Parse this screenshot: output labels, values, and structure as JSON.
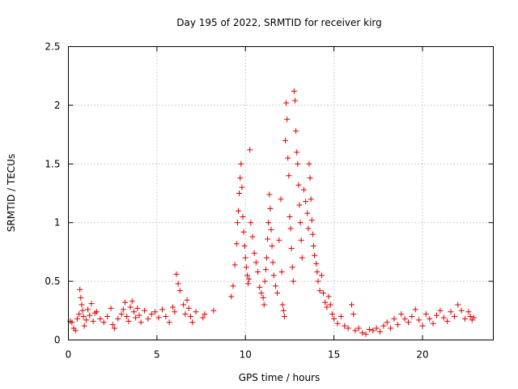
{
  "chart_data": {
    "type": "scatter",
    "title": "Day 195 of 2022, SRMTID for receiver kirg",
    "xlabel": "GPS time / hours",
    "ylabel": "SRMTID / TECUs",
    "xlim": [
      0,
      24
    ],
    "ylim": [
      0,
      2.5
    ],
    "xticks": [
      0,
      5,
      10,
      15,
      20
    ],
    "xtick_labels": [
      "0",
      "5",
      "10",
      "15",
      "20"
    ],
    "yticks": [
      0,
      0.5,
      1,
      1.5,
      2,
      2.5
    ],
    "ytick_labels": [
      "0",
      "0.5",
      "1",
      "1.5",
      "2",
      "2.5"
    ],
    "grid": true,
    "marker": "+",
    "color": "#e00000",
    "series": [
      {
        "name": "SRMTID",
        "points": [
          [
            0.1,
            0.16
          ],
          [
            0.2,
            0.15
          ],
          [
            0.3,
            0.1
          ],
          [
            0.4,
            0.08
          ],
          [
            0.5,
            0.18
          ],
          [
            0.6,
            0.22
          ],
          [
            0.65,
            0.43
          ],
          [
            0.7,
            0.36
          ],
          [
            0.75,
            0.3
          ],
          [
            0.8,
            0.25
          ],
          [
            0.85,
            0.2
          ],
          [
            0.9,
            0.12
          ],
          [
            1.0,
            0.17
          ],
          [
            1.1,
            0.26
          ],
          [
            1.2,
            0.21
          ],
          [
            1.3,
            0.31
          ],
          [
            1.4,
            0.16
          ],
          [
            1.5,
            0.23
          ],
          [
            1.6,
            0.24
          ],
          [
            1.8,
            0.18
          ],
          [
            2.0,
            0.15
          ],
          [
            2.2,
            0.2
          ],
          [
            2.4,
            0.27
          ],
          [
            2.5,
            0.13
          ],
          [
            2.6,
            0.1
          ],
          [
            2.8,
            0.18
          ],
          [
            3.0,
            0.22
          ],
          [
            3.1,
            0.26
          ],
          [
            3.2,
            0.32
          ],
          [
            3.3,
            0.2
          ],
          [
            3.4,
            0.16
          ],
          [
            3.5,
            0.28
          ],
          [
            3.6,
            0.33
          ],
          [
            3.7,
            0.24
          ],
          [
            3.8,
            0.19
          ],
          [
            3.9,
            0.27
          ],
          [
            4.0,
            0.21
          ],
          [
            4.1,
            0.15
          ],
          [
            4.3,
            0.25
          ],
          [
            4.5,
            0.18
          ],
          [
            4.7,
            0.22
          ],
          [
            4.9,
            0.24
          ],
          [
            5.1,
            0.19
          ],
          [
            5.3,
            0.26
          ],
          [
            5.5,
            0.2
          ],
          [
            5.7,
            0.15
          ],
          [
            5.9,
            0.28
          ],
          [
            6.0,
            0.24
          ],
          [
            6.1,
            0.56
          ],
          [
            6.2,
            0.48
          ],
          [
            6.3,
            0.42
          ],
          [
            6.5,
            0.3
          ],
          [
            6.6,
            0.22
          ],
          [
            6.7,
            0.34
          ],
          [
            6.8,
            0.27
          ],
          [
            6.9,
            0.2
          ],
          [
            7.0,
            0.15
          ],
          [
            7.2,
            0.24
          ],
          [
            7.6,
            0.19
          ],
          [
            7.7,
            0.22
          ],
          [
            8.2,
            0.25
          ],
          [
            9.2,
            0.37
          ],
          [
            9.3,
            0.46
          ],
          [
            9.4,
            0.64
          ],
          [
            9.5,
            0.82
          ],
          [
            9.55,
            1.0
          ],
          [
            9.6,
            1.1
          ],
          [
            9.65,
            1.25
          ],
          [
            9.7,
            1.38
          ],
          [
            9.75,
            1.5
          ],
          [
            9.8,
            1.3
          ],
          [
            9.85,
            1.05
          ],
          [
            9.9,
            0.92
          ],
          [
            9.95,
            0.8
          ],
          [
            10.0,
            0.7
          ],
          [
            10.05,
            0.62
          ],
          [
            10.1,
            0.55
          ],
          [
            10.15,
            0.48
          ],
          [
            10.2,
            0.52
          ],
          [
            10.25,
            1.62
          ],
          [
            10.3,
            1.0
          ],
          [
            10.4,
            0.88
          ],
          [
            10.5,
            0.74
          ],
          [
            10.6,
            0.66
          ],
          [
            10.7,
            0.58
          ],
          [
            10.8,
            0.45
          ],
          [
            10.9,
            0.4
          ],
          [
            11.0,
            0.36
          ],
          [
            11.05,
            0.3
          ],
          [
            11.1,
            0.5
          ],
          [
            11.15,
            0.6
          ],
          [
            11.2,
            0.7
          ],
          [
            11.25,
            0.86
          ],
          [
            11.3,
            1.0
          ],
          [
            11.35,
            1.24
          ],
          [
            11.4,
            1.12
          ],
          [
            11.45,
            0.94
          ],
          [
            11.5,
            0.8
          ],
          [
            11.55,
            0.66
          ],
          [
            11.6,
            0.55
          ],
          [
            11.7,
            0.46
          ],
          [
            11.8,
            0.4
          ],
          [
            11.9,
            0.85
          ],
          [
            12.0,
            1.2
          ],
          [
            12.05,
            0.58
          ],
          [
            12.1,
            0.3
          ],
          [
            12.15,
            0.25
          ],
          [
            12.2,
            0.2
          ],
          [
            12.25,
            1.7
          ],
          [
            12.3,
            2.02
          ],
          [
            12.35,
            1.88
          ],
          [
            12.4,
            1.55
          ],
          [
            12.45,
            1.4
          ],
          [
            12.5,
            1.05
          ],
          [
            12.55,
            0.95
          ],
          [
            12.6,
            0.78
          ],
          [
            12.65,
            0.62
          ],
          [
            12.7,
            0.5
          ],
          [
            12.75,
            2.12
          ],
          [
            12.8,
            2.04
          ],
          [
            12.85,
            1.78
          ],
          [
            12.9,
            1.6
          ],
          [
            12.95,
            1.5
          ],
          [
            13.0,
            1.32
          ],
          [
            13.05,
            1.15
          ],
          [
            13.1,
            1.0
          ],
          [
            13.15,
            0.85
          ],
          [
            13.2,
            0.7
          ],
          [
            13.3,
            1.28
          ],
          [
            13.4,
            1.18
          ],
          [
            13.5,
            1.08
          ],
          [
            13.55,
            0.95
          ],
          [
            13.6,
            1.5
          ],
          [
            13.65,
            1.38
          ],
          [
            13.7,
            1.2
          ],
          [
            13.75,
            1.02
          ],
          [
            13.8,
            0.9
          ],
          [
            13.85,
            0.8
          ],
          [
            13.9,
            0.72
          ],
          [
            14.0,
            0.65
          ],
          [
            14.05,
            0.58
          ],
          [
            14.1,
            0.5
          ],
          [
            14.2,
            0.42
          ],
          [
            14.3,
            0.55
          ],
          [
            14.4,
            0.4
          ],
          [
            14.5,
            0.32
          ],
          [
            14.6,
            0.28
          ],
          [
            14.7,
            0.37
          ],
          [
            14.8,
            0.3
          ],
          [
            14.9,
            0.22
          ],
          [
            15.0,
            0.18
          ],
          [
            15.2,
            0.14
          ],
          [
            15.4,
            0.2
          ],
          [
            15.6,
            0.12
          ],
          [
            15.8,
            0.1
          ],
          [
            16.0,
            0.3
          ],
          [
            16.1,
            0.22
          ],
          [
            16.2,
            0.08
          ],
          [
            16.4,
            0.1
          ],
          [
            16.6,
            0.06
          ],
          [
            16.8,
            0.05
          ],
          [
            17.0,
            0.09
          ],
          [
            17.2,
            0.08
          ],
          [
            17.4,
            0.1
          ],
          [
            17.6,
            0.07
          ],
          [
            17.8,
            0.12
          ],
          [
            18.0,
            0.15
          ],
          [
            18.2,
            0.1
          ],
          [
            18.4,
            0.18
          ],
          [
            18.6,
            0.13
          ],
          [
            18.8,
            0.22
          ],
          [
            19.0,
            0.18
          ],
          [
            19.2,
            0.15
          ],
          [
            19.4,
            0.2
          ],
          [
            19.6,
            0.26
          ],
          [
            19.8,
            0.17
          ],
          [
            20.0,
            0.12
          ],
          [
            20.2,
            0.22
          ],
          [
            20.4,
            0.18
          ],
          [
            20.6,
            0.14
          ],
          [
            20.8,
            0.21
          ],
          [
            21.0,
            0.25
          ],
          [
            21.2,
            0.19
          ],
          [
            21.4,
            0.16
          ],
          [
            21.6,
            0.24
          ],
          [
            21.8,
            0.2
          ],
          [
            22.0,
            0.3
          ],
          [
            22.2,
            0.25
          ],
          [
            22.4,
            0.18
          ],
          [
            22.6,
            0.24
          ],
          [
            22.7,
            0.2
          ],
          [
            22.8,
            0.17
          ],
          [
            22.9,
            0.19
          ]
        ]
      }
    ]
  }
}
